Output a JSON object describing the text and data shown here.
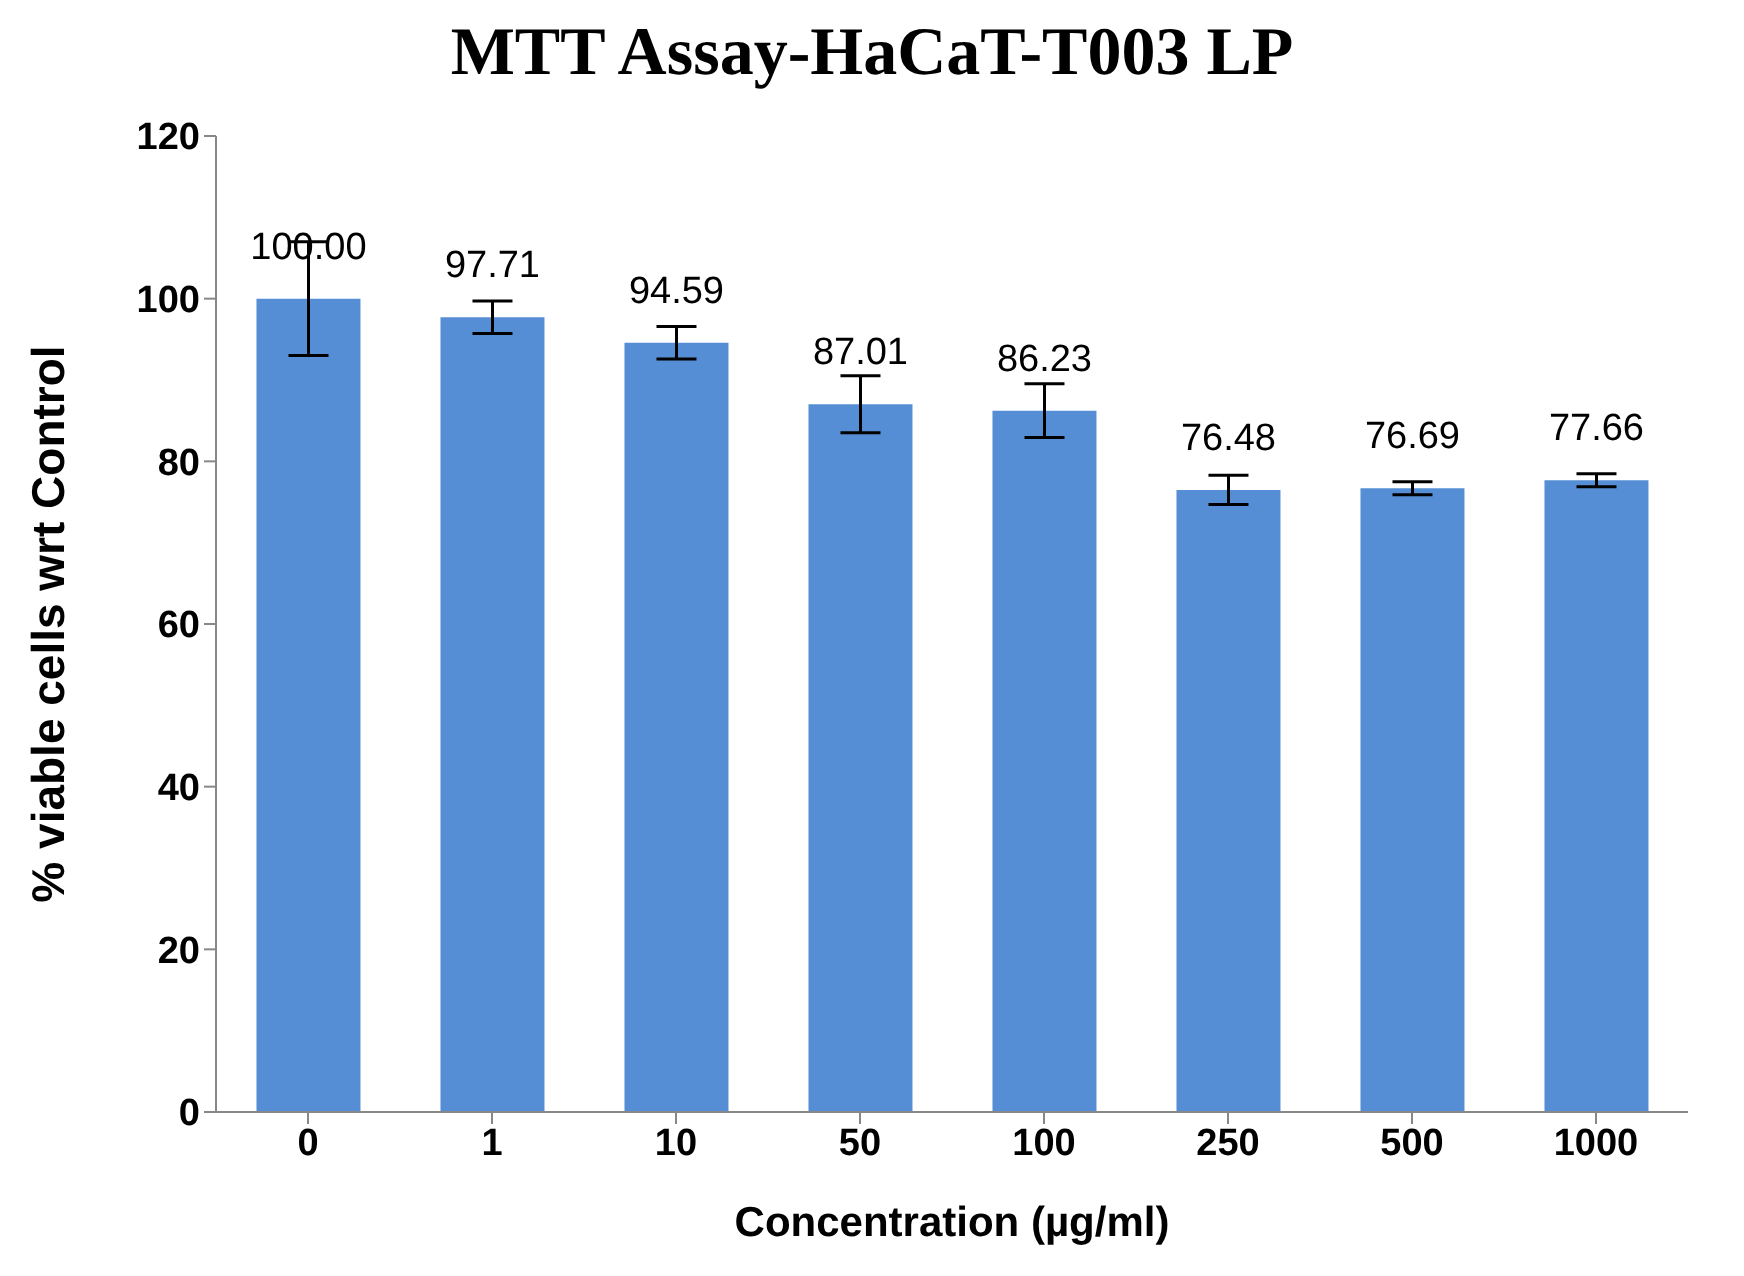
{
  "chart_data": {
    "type": "bar",
    "title": "MTT Assay-HaCaT-T003 LP",
    "xlabel": "Concentration (µg/ml)",
    "ylabel": "%  viable cells  wrt Control",
    "categories": [
      "0",
      "1",
      "10",
      "50",
      "100",
      "250",
      "500",
      "1000"
    ],
    "values": [
      100.0,
      97.71,
      94.59,
      87.01,
      86.23,
      76.48,
      76.69,
      77.66
    ],
    "value_labels": [
      "100.00",
      "97.71",
      "94.59",
      "87.01",
      "86.23",
      "76.48",
      "76.69",
      "77.66"
    ],
    "errors": [
      7,
      2,
      2,
      3.5,
      3.3,
      1.8,
      0.8,
      0.8
    ],
    "color": "#558ed5",
    "ylim": [
      0,
      120
    ],
    "yticks": [
      0,
      20,
      40,
      60,
      80,
      100,
      120
    ],
    "grid": false,
    "legend": false
  }
}
